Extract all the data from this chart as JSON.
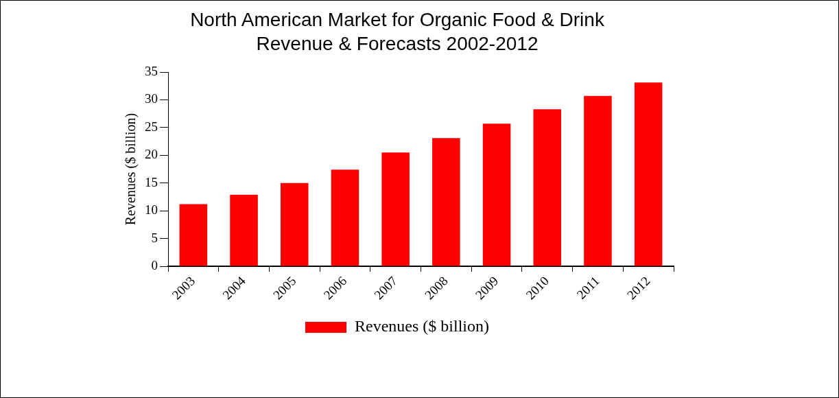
{
  "chart_data": {
    "type": "bar",
    "title": [
      "North American Market for Organic Food & Drink",
      "Revenue & Forecasts 2002-2012"
    ],
    "ylabel": "Revenues ($ billion)",
    "categories": [
      "2003",
      "2004",
      "2005",
      "2006",
      "2007",
      "2008",
      "2009",
      "2010",
      "2011",
      "2012"
    ],
    "series": [
      {
        "name": "Revenues ($ billion)",
        "color": "#ff0000",
        "values": [
          11.2,
          12.9,
          15,
          17.4,
          20.5,
          23.1,
          25.7,
          28.3,
          30.7,
          33.1
        ]
      }
    ],
    "ylim": [
      0,
      35
    ],
    "yticks": [
      0,
      5,
      10,
      15,
      20,
      25,
      30,
      35
    ],
    "grid": false,
    "legend": "bottom"
  }
}
